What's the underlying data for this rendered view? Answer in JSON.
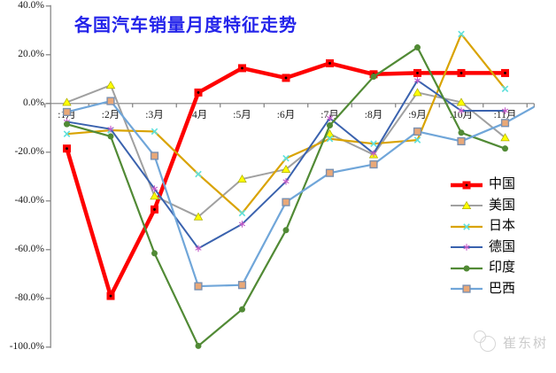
{
  "title": {
    "text": "各国汽车销量月度特征走势",
    "color": "#2424EA"
  },
  "watermark": {
    "text": "崔东树"
  },
  "chart_data": {
    "type": "line",
    "title": "各国汽车销量月度特征走势",
    "categories": [
      ":1月",
      ":2月",
      ":3月",
      ":4月",
      ":5月",
      ":6月",
      ":7月",
      ":8月",
      ":9月",
      ":10月",
      ":11月"
    ],
    "y_axis": {
      "unit": "percent YoY",
      "ticks": [
        "40.0%",
        "20.0%",
        "0.0%",
        "-20.0%",
        "-40.0%",
        "-60.0%",
        "-80.0%",
        "-100.0%"
      ],
      "tick_values": [
        40,
        20,
        0,
        -20,
        -40,
        -60,
        -80,
        -100
      ],
      "max": 40,
      "min": -100
    },
    "grid": false,
    "legend_position": "right",
    "series": [
      {
        "key": "china",
        "name": "中国",
        "color": "#FE0000",
        "line_width": 4.5,
        "marker": "square-dot",
        "marker_color": "#FE0000",
        "values": [
          -18.5,
          -79,
          -43.5,
          4.5,
          14.5,
          10.5,
          16.5,
          12,
          12.5,
          12.5,
          12.5
        ]
      },
      {
        "key": "usa",
        "name": "美国",
        "color": "#A0A0A0",
        "line_width": 2,
        "marker": "triangle",
        "marker_color": "#FFFF00",
        "values": [
          0.5,
          7.5,
          -38,
          -46.5,
          -31,
          -27,
          -12.5,
          -21,
          4.5,
          0.5,
          -14
        ]
      },
      {
        "key": "japan",
        "name": "日本",
        "color": "#D9A300",
        "line_width": 2.2,
        "marker": "x",
        "marker_color": "#5FE0DC",
        "values": [
          -12.5,
          -11,
          -11.5,
          -29,
          -45,
          -22.5,
          -14.5,
          -16.5,
          -15,
          28.5,
          6
        ]
      },
      {
        "key": "germany",
        "name": "德国",
        "color": "#3A62AE",
        "line_width": 2,
        "marker": "asterisk",
        "marker_color": "#C25AC8",
        "values": [
          -7.5,
          -10.5,
          -35,
          -59.5,
          -49.5,
          -32,
          -6,
          -20.5,
          9.5,
          -3,
          -3
        ]
      },
      {
        "key": "india",
        "name": "印度",
        "color": "#518A35",
        "line_width": 2.2,
        "marker": "circle",
        "marker_color": "#518A35",
        "values": [
          -8.5,
          -13.5,
          -61.5,
          -99.5,
          -84.5,
          -52,
          -9,
          11,
          23,
          -12,
          -18.5
        ]
      },
      {
        "key": "brazil",
        "name": "巴西",
        "color": "#70A6D9",
        "line_width": 2.2,
        "marker": "square",
        "marker_color": "#E9A878",
        "values": [
          -3.5,
          1,
          -21.5,
          -75,
          -74.5,
          -40.5,
          -28.5,
          -25,
          -11.5,
          -15.5,
          -8
        ],
        "next_month_partial_clipped": 2
      }
    ]
  }
}
